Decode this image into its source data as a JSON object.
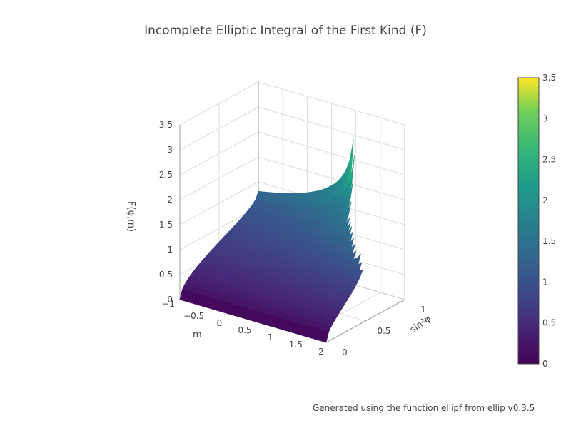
{
  "title": "Incomplete Elliptic Integral of the First Kind (F)",
  "footer": "Generated using the function ellipf from ellip v0.3.5",
  "chart_data": {
    "type": "surface",
    "title": "Incomplete Elliptic Integral of the First Kind (F)",
    "function": "F(φ,m)",
    "axes": {
      "x": {
        "label": "m",
        "range": [
          -1,
          2
        ],
        "ticks": [
          "−1",
          "−0.5",
          "0",
          "0.5",
          "1",
          "1.5",
          "2"
        ]
      },
      "y": {
        "label": "sin²φ",
        "range": [
          0,
          1
        ],
        "ticks": [
          "0",
          "0.5",
          "1"
        ]
      },
      "z": {
        "label": "F(φ,m)",
        "range": [
          0,
          3.5
        ],
        "ticks": [
          "0",
          "0.5",
          "1",
          "1.5",
          "2",
          "2.5",
          "3",
          "3.5"
        ]
      }
    },
    "colorscale": "Viridis",
    "colorbar": {
      "range": [
        0,
        3.5
      ],
      "ticks": [
        "0",
        "0.5",
        "1",
        "1.5",
        "2",
        "2.5",
        "3",
        "3.5"
      ]
    },
    "colors": {
      "low": "#440154",
      "mid": "#21918c",
      "high": "#fde725"
    },
    "grid": true
  }
}
